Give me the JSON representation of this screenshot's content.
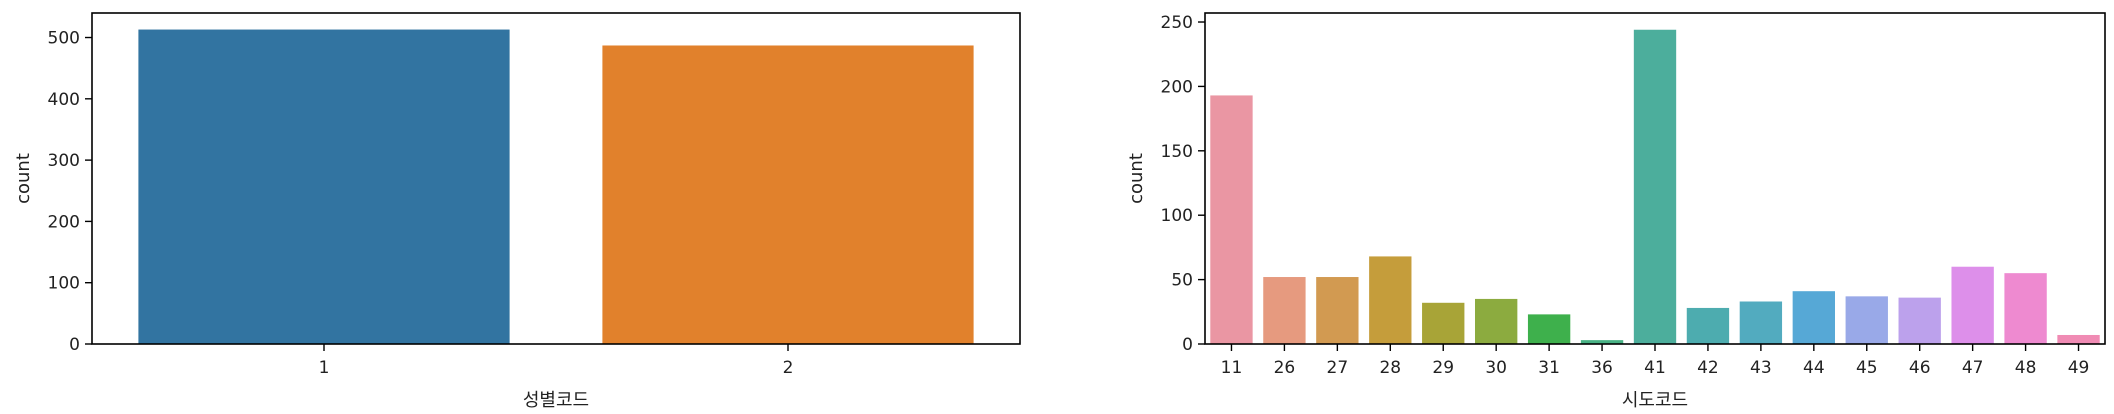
{
  "chart_data": [
    {
      "type": "bar",
      "xlabel": "성별코드",
      "ylabel": "count",
      "categories": [
        "1",
        "2"
      ],
      "values": [
        513,
        487
      ],
      "colors": [
        "#3274a1",
        "#e1812c"
      ],
      "ylim": [
        0,
        540
      ],
      "yticks": [
        0,
        100,
        200,
        300,
        400,
        500
      ],
      "grid": false
    },
    {
      "type": "bar",
      "xlabel": "시도코드",
      "ylabel": "count",
      "categories": [
        "11",
        "26",
        "27",
        "28",
        "29",
        "30",
        "31",
        "36",
        "41",
        "42",
        "43",
        "44",
        "45",
        "46",
        "47",
        "48",
        "49"
      ],
      "values": [
        193,
        52,
        52,
        68,
        32,
        35,
        23,
        3,
        244,
        28,
        33,
        41,
        37,
        36,
        60,
        55,
        7
      ],
      "colors": [
        "#ea96a3",
        "#e69a7f",
        "#d29a51",
        "#c59d3b",
        "#a8a437",
        "#8cab3f",
        "#3eb04c",
        "#48b184",
        "#4cae9c",
        "#4dacaf",
        "#52abbf",
        "#56a8d6",
        "#99a9e8",
        "#bca1ec",
        "#dd8fea",
        "#ee8ad0",
        "#f08bb4"
      ],
      "ylim": [
        0,
        257
      ],
      "yticks": [
        0,
        50,
        100,
        150,
        200,
        250
      ],
      "grid": false
    }
  ]
}
